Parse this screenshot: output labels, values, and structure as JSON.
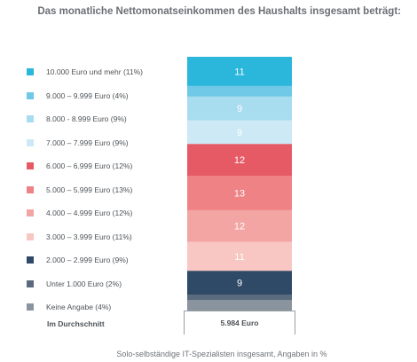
{
  "chart_data": {
    "type": "bar",
    "title": "Das monatliche Nettomonatseinkommen des Haushalts insgesamt beträgt:",
    "footer": "Solo-selbständige IT-Spezialisten insgesamt, Angaben in %",
    "unit": "%",
    "categories": [
      "10.000 Euro und mehr (11%)",
      "9.000 – 9.999 Euro (4%)",
      "8.000 - 8.999 Euro (9%)",
      "7.000 – 7.999 Euro (9%)",
      "6.000 – 6.999 Euro (12%)",
      "5.000 – 5.999 Euro (13%)",
      "4.000 – 4.999 Euro (12%)",
      "3.000 – 3.999 Euro (11%)",
      "2.000 – 2.999 Euro (9%)",
      "Unter 1.000 Euro (2%)",
      "Keine Angabe (4%)"
    ],
    "values": [
      11,
      4,
      9,
      9,
      12,
      13,
      12,
      11,
      9,
      2,
      4
    ],
    "labels": [
      "11",
      "",
      "9",
      "9",
      "12",
      "13",
      "12",
      "11",
      "9",
      "",
      ""
    ],
    "colors": [
      "#2bb6dc",
      "#6ec8e6",
      "#a8dcef",
      "#cde9f5",
      "#e65a66",
      "#ef8285",
      "#f3a5a3",
      "#f8c6c3",
      "#2e4a66",
      "#5b6b7e",
      "#8a949e"
    ],
    "average_label": "Im Durchschnitt",
    "average_value": "5.984 Euro"
  }
}
